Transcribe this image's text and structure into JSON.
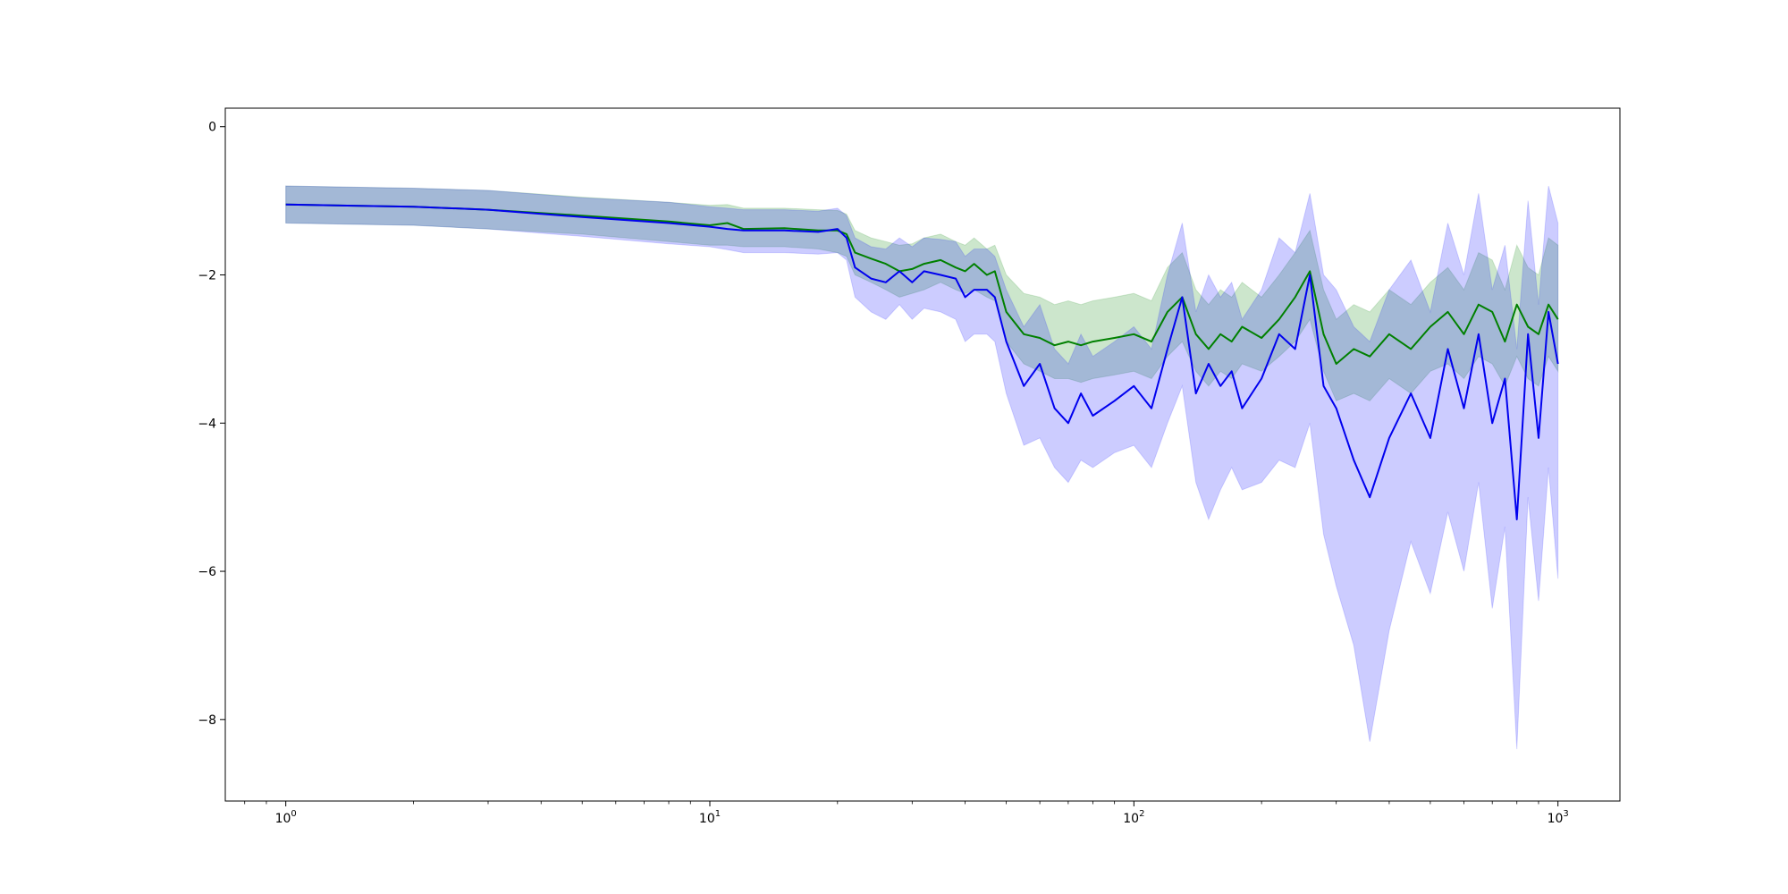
{
  "chart_data": {
    "type": "line",
    "x_scale": "log",
    "title": "",
    "xlabel": "",
    "ylabel": "",
    "xlim": [
      0.72,
      1400
    ],
    "ylim": [
      -9.1,
      0.25
    ],
    "x_ticks": [
      {
        "value": 1,
        "base": "10",
        "exp": "0"
      },
      {
        "value": 10,
        "base": "10",
        "exp": "1"
      },
      {
        "value": 100,
        "base": "10",
        "exp": "2"
      },
      {
        "value": 1000,
        "base": "10",
        "exp": "3"
      }
    ],
    "y_ticks": [
      {
        "value": 0,
        "label": "0"
      },
      {
        "value": -2,
        "label": "−2"
      },
      {
        "value": -4,
        "label": "−4"
      },
      {
        "value": -6,
        "label": "−6"
      },
      {
        "value": -8,
        "label": "−8"
      }
    ],
    "grid": false,
    "legend": "none",
    "series": [
      {
        "color": "#008000",
        "band_color": "#008000",
        "band_opacity": 0.2,
        "x": [
          1,
          2,
          3,
          5,
          8,
          10,
          11,
          12,
          15,
          18,
          20,
          21,
          22,
          24,
          26,
          28,
          30,
          32,
          35,
          38,
          40,
          42,
          45,
          47,
          50,
          55,
          60,
          65,
          70,
          75,
          80,
          90,
          100,
          110,
          120,
          130,
          140,
          150,
          160,
          170,
          180,
          200,
          220,
          240,
          260,
          280,
          300,
          330,
          360,
          400,
          450,
          500,
          550,
          600,
          650,
          700,
          750,
          800,
          850,
          900,
          950,
          1000
        ],
        "y": [
          -1.05,
          -1.08,
          -1.12,
          -1.2,
          -1.28,
          -1.33,
          -1.3,
          -1.38,
          -1.37,
          -1.4,
          -1.4,
          -1.45,
          -1.7,
          -1.78,
          -1.85,
          -1.95,
          -1.92,
          -1.85,
          -1.8,
          -1.9,
          -1.95,
          -1.85,
          -2.0,
          -1.95,
          -2.5,
          -2.8,
          -2.85,
          -2.95,
          -2.9,
          -2.95,
          -2.9,
          -2.85,
          -2.8,
          -2.9,
          -2.5,
          -2.3,
          -2.8,
          -3.0,
          -2.8,
          -2.9,
          -2.7,
          -2.85,
          -2.6,
          -2.3,
          -1.95,
          -2.8,
          -3.2,
          -3.0,
          -3.1,
          -2.8,
          -3.0,
          -2.7,
          -2.5,
          -2.8,
          -2.4,
          -2.5,
          -2.9,
          -2.4,
          -2.7,
          -2.8,
          -2.4,
          -2.6
        ],
        "lower": [
          -1.3,
          -1.33,
          -1.38,
          -1.45,
          -1.55,
          -1.6,
          -1.6,
          -1.62,
          -1.62,
          -1.65,
          -1.7,
          -1.75,
          -2.0,
          -2.1,
          -2.2,
          -2.3,
          -2.25,
          -2.2,
          -2.1,
          -2.2,
          -2.25,
          -2.2,
          -2.3,
          -2.35,
          -2.9,
          -3.2,
          -3.3,
          -3.4,
          -3.4,
          -3.45,
          -3.4,
          -3.35,
          -3.3,
          -3.4,
          -3.1,
          -2.9,
          -3.3,
          -3.5,
          -3.3,
          -3.4,
          -3.2,
          -3.3,
          -3.1,
          -2.9,
          -2.6,
          -3.3,
          -3.7,
          -3.6,
          -3.7,
          -3.4,
          -3.6,
          -3.3,
          -3.2,
          -3.4,
          -3.1,
          -3.2,
          -3.5,
          -3.1,
          -3.4,
          -3.5,
          -3.1,
          -3.3
        ],
        "upper": [
          -0.8,
          -0.83,
          -0.86,
          -0.95,
          -1.02,
          -1.06,
          -1.05,
          -1.1,
          -1.1,
          -1.12,
          -1.13,
          -1.18,
          -1.4,
          -1.5,
          -1.55,
          -1.6,
          -1.58,
          -1.5,
          -1.45,
          -1.55,
          -1.6,
          -1.5,
          -1.65,
          -1.6,
          -2.0,
          -2.25,
          -2.3,
          -2.4,
          -2.35,
          -2.4,
          -2.35,
          -2.3,
          -2.25,
          -2.35,
          -1.9,
          -1.7,
          -2.2,
          -2.4,
          -2.2,
          -2.3,
          -2.1,
          -2.3,
          -2.0,
          -1.7,
          -1.4,
          -2.2,
          -2.6,
          -2.4,
          -2.5,
          -2.2,
          -2.4,
          -2.1,
          -1.9,
          -2.2,
          -1.7,
          -1.8,
          -2.2,
          -1.6,
          -1.9,
          -2.0,
          -1.5,
          -1.6
        ]
      },
      {
        "color": "#0000ee",
        "band_color": "#0000ff",
        "band_opacity": 0.2,
        "x": [
          1,
          2,
          3,
          5,
          8,
          10,
          11,
          12,
          15,
          18,
          20,
          21,
          22,
          24,
          26,
          28,
          30,
          32,
          35,
          38,
          40,
          42,
          45,
          47,
          50,
          55,
          60,
          65,
          70,
          75,
          80,
          90,
          100,
          110,
          120,
          130,
          140,
          150,
          160,
          170,
          180,
          200,
          220,
          240,
          260,
          280,
          300,
          330,
          360,
          400,
          450,
          500,
          550,
          600,
          650,
          700,
          750,
          800,
          850,
          900,
          950,
          1000
        ],
        "y": [
          -1.05,
          -1.08,
          -1.12,
          -1.22,
          -1.3,
          -1.35,
          -1.38,
          -1.4,
          -1.4,
          -1.42,
          -1.38,
          -1.5,
          -1.9,
          -2.05,
          -2.1,
          -1.95,
          -2.1,
          -1.95,
          -2.0,
          -2.05,
          -2.3,
          -2.2,
          -2.2,
          -2.3,
          -2.9,
          -3.5,
          -3.2,
          -3.8,
          -4.0,
          -3.6,
          -3.9,
          -3.7,
          -3.5,
          -3.8,
          -3.0,
          -2.3,
          -3.6,
          -3.2,
          -3.5,
          -3.3,
          -3.8,
          -3.4,
          -2.8,
          -3.0,
          -2.0,
          -3.5,
          -3.8,
          -4.5,
          -5.0,
          -4.2,
          -3.6,
          -4.2,
          -3.0,
          -3.8,
          -2.8,
          -4.0,
          -3.4,
          -5.3,
          -2.8,
          -4.2,
          -2.5,
          -3.2
        ],
        "lower": [
          -1.3,
          -1.33,
          -1.38,
          -1.48,
          -1.58,
          -1.62,
          -1.66,
          -1.7,
          -1.7,
          -1.72,
          -1.7,
          -1.8,
          -2.3,
          -2.5,
          -2.6,
          -2.4,
          -2.6,
          -2.45,
          -2.5,
          -2.6,
          -2.9,
          -2.8,
          -2.8,
          -2.9,
          -3.6,
          -4.3,
          -4.2,
          -4.6,
          -4.8,
          -4.5,
          -4.6,
          -4.4,
          -4.3,
          -4.6,
          -4.0,
          -3.5,
          -4.8,
          -5.3,
          -4.9,
          -4.6,
          -4.9,
          -4.8,
          -4.5,
          -4.6,
          -4.0,
          -5.5,
          -6.2,
          -7.0,
          -8.3,
          -6.8,
          -5.6,
          -6.3,
          -5.2,
          -6.0,
          -4.8,
          -6.5,
          -5.4,
          -8.4,
          -5.0,
          -6.4,
          -4.6,
          -6.1
        ],
        "upper": [
          -0.8,
          -0.83,
          -0.86,
          -0.96,
          -1.02,
          -1.08,
          -1.1,
          -1.12,
          -1.12,
          -1.14,
          -1.1,
          -1.2,
          -1.5,
          -1.62,
          -1.65,
          -1.5,
          -1.62,
          -1.5,
          -1.52,
          -1.55,
          -1.75,
          -1.65,
          -1.65,
          -1.75,
          -2.2,
          -2.7,
          -2.4,
          -3.0,
          -3.2,
          -2.8,
          -3.1,
          -2.9,
          -2.7,
          -3.0,
          -2.0,
          -1.3,
          -2.5,
          -2.0,
          -2.3,
          -2.1,
          -2.6,
          -2.2,
          -1.5,
          -1.7,
          -0.9,
          -2.0,
          -2.2,
          -2.7,
          -2.9,
          -2.2,
          -1.8,
          -2.5,
          -1.3,
          -2.0,
          -0.9,
          -2.2,
          -1.6,
          -3.0,
          -1.0,
          -2.4,
          -0.8,
          -1.3
        ]
      }
    ]
  }
}
